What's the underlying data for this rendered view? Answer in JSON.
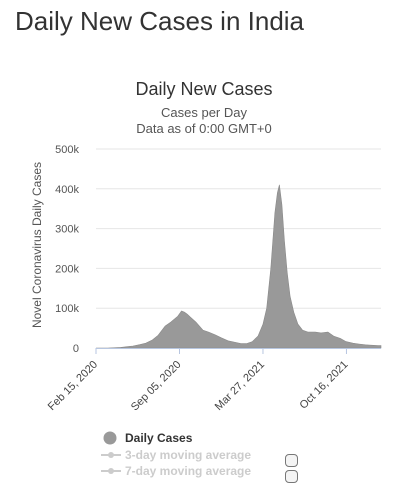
{
  "page": {
    "heading": "Daily New Cases in India"
  },
  "legend": {
    "items": [
      {
        "label": "Daily Cases",
        "color": "#999999",
        "enabled": true
      },
      {
        "label": "3-day moving average",
        "color": "#cccccc",
        "enabled": false
      },
      {
        "label": "7-day moving average",
        "color": "#cccccc",
        "enabled": false
      }
    ]
  },
  "chart_data": {
    "type": "area",
    "title": "Daily New Cases",
    "subtitle": "Cases per Day",
    "subtitle2": "Data as of 0:00 GMT+0",
    "ylabel": "Novel Coronavirus Daily Cases",
    "xlabel": "",
    "ylim": [
      0,
      500000
    ],
    "yticks": [
      0,
      100000,
      200000,
      300000,
      400000,
      500000
    ],
    "ytick_labels": [
      "0",
      "100k",
      "200k",
      "300k",
      "400k",
      "500k"
    ],
    "xticks": [
      "2020-02-15",
      "2020-09-05",
      "2021-03-27",
      "2021-10-16"
    ],
    "xtick_labels": [
      "Feb 15, 2020",
      "Sep 05, 2020",
      "Mar 27, 2021",
      "Oct 16, 2021"
    ],
    "xlim": [
      "2020-02-15",
      "2022-01-08"
    ],
    "grid": true,
    "color": "#999999",
    "series": [
      {
        "x": [
          "2020-02-15",
          "2020-03-15",
          "2020-04-15",
          "2020-05-15",
          "2020-06-01",
          "2020-06-15",
          "2020-07-01",
          "2020-07-15",
          "2020-08-01",
          "2020-08-15",
          "2020-09-01",
          "2020-09-10",
          "2020-09-17",
          "2020-09-24",
          "2020-10-01",
          "2020-10-15",
          "2020-11-01",
          "2020-11-15",
          "2020-12-01",
          "2020-12-15",
          "2021-01-01",
          "2021-01-15",
          "2021-02-01",
          "2021-02-15",
          "2021-03-01",
          "2021-03-15",
          "2021-03-27",
          "2021-04-05",
          "2021-04-15",
          "2021-04-25",
          "2021-05-01",
          "2021-05-06",
          "2021-05-12",
          "2021-05-18",
          "2021-05-25",
          "2021-06-01",
          "2021-06-10",
          "2021-06-20",
          "2021-07-01",
          "2021-07-15",
          "2021-08-01",
          "2021-08-15",
          "2021-09-01",
          "2021-09-15",
          "2021-10-01",
          "2021-10-15",
          "2021-11-01",
          "2021-11-15",
          "2021-12-01",
          "2021-12-15",
          "2022-01-01",
          "2022-01-08"
        ],
        "values": [
          0,
          100,
          1500,
          5000,
          8500,
          12000,
          20000,
          32000,
          55000,
          65000,
          80000,
          93000,
          90000,
          85000,
          78000,
          65000,
          45000,
          40000,
          33000,
          26000,
          18000,
          15000,
          11000,
          11000,
          16000,
          30000,
          60000,
          100000,
          200000,
          340000,
          390000,
          410000,
          360000,
          270000,
          190000,
          130000,
          90000,
          60000,
          45000,
          40000,
          40000,
          38000,
          40000,
          30000,
          24000,
          16000,
          12000,
          10000,
          8000,
          7000,
          6000,
          6000
        ]
      }
    ]
  }
}
